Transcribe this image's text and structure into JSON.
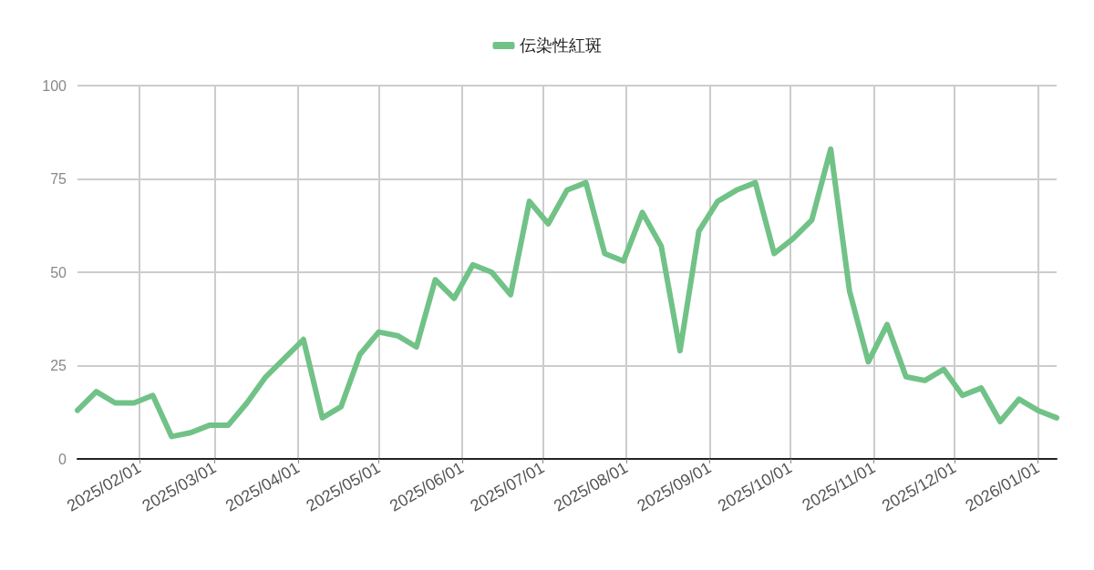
{
  "chart_data": {
    "type": "line",
    "x": [
      "2025-01-09",
      "2025-01-16",
      "2025-01-23",
      "2025-01-30",
      "2025-02-06",
      "2025-02-13",
      "2025-02-20",
      "2025-02-27",
      "2025-03-06",
      "2025-03-13",
      "2025-03-20",
      "2025-03-27",
      "2025-04-03",
      "2025-04-10",
      "2025-04-17",
      "2025-04-24",
      "2025-05-01",
      "2025-05-08",
      "2025-05-15",
      "2025-05-22",
      "2025-05-29",
      "2025-06-05",
      "2025-06-12",
      "2025-06-19",
      "2025-06-26",
      "2025-07-03",
      "2025-07-10",
      "2025-07-17",
      "2025-07-24",
      "2025-07-31",
      "2025-08-07",
      "2025-08-14",
      "2025-08-21",
      "2025-08-28",
      "2025-09-04",
      "2025-09-11",
      "2025-09-18",
      "2025-09-25",
      "2025-10-02",
      "2025-10-09",
      "2025-10-16",
      "2025-10-23",
      "2025-10-30",
      "2025-11-06",
      "2025-11-13",
      "2025-11-20",
      "2025-11-27",
      "2025-12-04",
      "2025-12-11",
      "2025-12-18",
      "2025-12-25",
      "2026-01-01",
      "2026-01-08"
    ],
    "series": [
      {
        "name": "伝染性紅斑",
        "color": "#71c287",
        "values": [
          13,
          18,
          15,
          15,
          17,
          6,
          7,
          9,
          9,
          15,
          22,
          27,
          32,
          11,
          14,
          28,
          34,
          33,
          30,
          48,
          43,
          52,
          50,
          44,
          69,
          63,
          72,
          74,
          55,
          53,
          66,
          57,
          29,
          61,
          69,
          72,
          74,
          55,
          59,
          64,
          83,
          45,
          26,
          36,
          22,
          21,
          24,
          17,
          19,
          10,
          16,
          13,
          11
        ]
      }
    ],
    "xlim": [
      "2025-01-09",
      "2026-01-08"
    ],
    "xticks": [
      {
        "value": "2025-02-01",
        "label": "2025/02/01"
      },
      {
        "value": "2025-03-01",
        "label": "2025/03/01"
      },
      {
        "value": "2025-04-01",
        "label": "2025/04/01"
      },
      {
        "value": "2025-05-01",
        "label": "2025/05/01"
      },
      {
        "value": "2025-06-01",
        "label": "2025/06/01"
      },
      {
        "value": "2025-07-01",
        "label": "2025/07/01"
      },
      {
        "value": "2025-08-01",
        "label": "2025/08/01"
      },
      {
        "value": "2025-09-01",
        "label": "2025/09/01"
      },
      {
        "value": "2025-10-01",
        "label": "2025/10/01"
      },
      {
        "value": "2025-11-01",
        "label": "2025/11/01"
      },
      {
        "value": "2025-12-01",
        "label": "2025/12/01"
      },
      {
        "value": "2026-01-01",
        "label": "2026/01/01"
      }
    ],
    "ylim": [
      0,
      100
    ],
    "yticks": [
      0,
      25,
      50,
      75,
      100
    ],
    "grid": true,
    "legend": "top",
    "marker": "none",
    "line_style": "solid"
  }
}
